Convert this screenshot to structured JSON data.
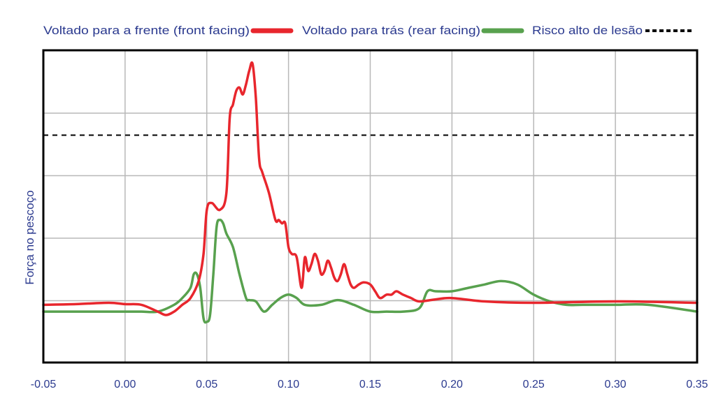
{
  "chart_data": {
    "type": "line",
    "title": "",
    "xlabel": "",
    "ylabel": "Força no pescoço",
    "xlim": [
      -0.05,
      0.35
    ],
    "ylim": [
      -0.8,
      3.8
    ],
    "x_ticks": [
      "-0.05",
      "0.00",
      "0.05",
      "0.10",
      "0.15",
      "0.20",
      "0.25",
      "0.30",
      "0.35"
    ],
    "y_tick_labels_visible": false,
    "grid": true,
    "legend_position": "top",
    "legend": [
      {
        "label": "Voltado para a frente (front facing)",
        "color": "#e8262d",
        "style": "solid"
      },
      {
        "label": "Voltado para trás (rear facing)",
        "color": "#58a14e",
        "style": "solid"
      },
      {
        "label": "Risco alto de lesão",
        "color": "#000000",
        "style": "dashed"
      }
    ],
    "series": [
      {
        "name": "Voltado para a frente (front facing)",
        "color": "#e8262d",
        "x": [
          -0.05,
          -0.03,
          -0.01,
          0.0,
          0.01,
          0.02,
          0.025,
          0.03,
          0.035,
          0.04,
          0.045,
          0.048,
          0.05,
          0.053,
          0.058,
          0.062,
          0.064,
          0.066,
          0.068,
          0.07,
          0.072,
          0.074,
          0.076,
          0.078,
          0.08,
          0.082,
          0.084,
          0.088,
          0.092,
          0.094,
          0.096,
          0.098,
          0.1,
          0.102,
          0.105,
          0.108,
          0.11,
          0.112,
          0.114,
          0.116,
          0.118,
          0.12,
          0.122,
          0.124,
          0.126,
          0.128,
          0.13,
          0.132,
          0.134,
          0.136,
          0.138,
          0.14,
          0.143,
          0.146,
          0.15,
          0.153,
          0.156,
          0.16,
          0.163,
          0.166,
          0.17,
          0.175,
          0.18,
          0.19,
          0.2,
          0.22,
          0.25,
          0.3,
          0.35
        ],
        "y": [
          0.05,
          0.06,
          0.08,
          0.06,
          0.05,
          -0.05,
          -0.1,
          -0.05,
          0.05,
          0.15,
          0.4,
          0.8,
          1.45,
          1.55,
          1.45,
          1.7,
          2.8,
          3.0,
          3.2,
          3.25,
          3.15,
          3.3,
          3.5,
          3.6,
          3.1,
          2.2,
          2.0,
          1.7,
          1.3,
          1.3,
          1.25,
          1.25,
          0.9,
          0.8,
          0.75,
          0.3,
          0.75,
          0.55,
          0.65,
          0.8,
          0.7,
          0.5,
          0.55,
          0.7,
          0.6,
          0.45,
          0.4,
          0.5,
          0.65,
          0.5,
          0.35,
          0.3,
          0.35,
          0.38,
          0.35,
          0.25,
          0.15,
          0.2,
          0.2,
          0.25,
          0.2,
          0.15,
          0.1,
          0.13,
          0.15,
          0.1,
          0.08,
          0.1,
          0.08
        ]
      },
      {
        "name": "Voltado para trás (rear facing)",
        "color": "#58a14e",
        "x": [
          -0.05,
          -0.03,
          -0.01,
          0.0,
          0.01,
          0.02,
          0.03,
          0.035,
          0.04,
          0.042,
          0.044,
          0.046,
          0.048,
          0.05,
          0.052,
          0.054,
          0.056,
          0.058,
          0.06,
          0.062,
          0.066,
          0.07,
          0.074,
          0.076,
          0.08,
          0.085,
          0.09,
          0.095,
          0.1,
          0.105,
          0.11,
          0.12,
          0.13,
          0.14,
          0.15,
          0.16,
          0.17,
          0.18,
          0.185,
          0.19,
          0.2,
          0.21,
          0.22,
          0.23,
          0.24,
          0.25,
          0.26,
          0.27,
          0.28,
          0.3,
          0.32,
          0.35
        ],
        "y": [
          -0.05,
          -0.05,
          -0.05,
          -0.05,
          -0.05,
          -0.05,
          0.05,
          0.15,
          0.3,
          0.5,
          0.5,
          0.3,
          -0.15,
          -0.2,
          -0.1,
          0.5,
          1.2,
          1.3,
          1.25,
          1.1,
          0.9,
          0.5,
          0.15,
          0.12,
          0.1,
          -0.05,
          0.05,
          0.15,
          0.2,
          0.15,
          0.05,
          0.05,
          0.12,
          0.05,
          -0.05,
          -0.05,
          -0.05,
          0.0,
          0.25,
          0.25,
          0.25,
          0.3,
          0.35,
          0.4,
          0.35,
          0.2,
          0.1,
          0.05,
          0.05,
          0.05,
          0.05,
          -0.05
        ]
      }
    ],
    "threshold": {
      "name": "Risco alto de lesão",
      "y": 2.55,
      "color": "#000000",
      "style": "dashed"
    }
  }
}
